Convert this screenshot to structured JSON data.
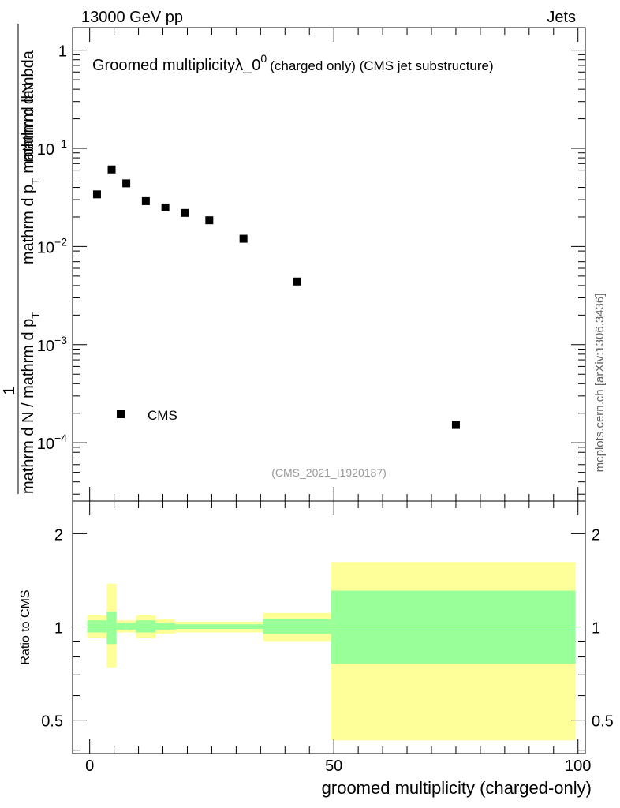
{
  "header": {
    "left": "13000 GeV pp",
    "right": "Jets"
  },
  "side_label": "mcplots.cern.ch [arXiv:1306.3436]",
  "chart_data": [
    {
      "type": "scatter",
      "title_main": "Groomed multiplicityλ_0",
      "title_sup": "0",
      "title_sub": "(charged only) (CMS jet substructure)",
      "analysis_id": "(CMS_2021_I1920187)",
      "ylabel": {
        "numerator_one": "1",
        "numerator_text": "mathrm d",
        "numerator_N": "N",
        "denominator_line1": "mathrm d N / mathrm d p",
        "denominator_sub1": "T",
        "denominator_line2": "mathrm d p",
        "denominator_sub2": "T",
        "denominator_line3": " mathrm d lambda"
      },
      "yscale": "log",
      "ylim": [
        2.55e-05,
        1.7
      ],
      "xlim": [
        -3.5,
        101.5
      ],
      "y_tick_labels": [
        {
          "value": 1,
          "base": "1",
          "exp": ""
        },
        {
          "value": 0.1,
          "base": "10",
          "exp": "−1"
        },
        {
          "value": 0.01,
          "base": "10",
          "exp": "−2"
        },
        {
          "value": 0.001,
          "base": "10",
          "exp": "−3"
        },
        {
          "value": 0.0001,
          "base": "10",
          "exp": "−4"
        }
      ],
      "series": [
        {
          "name": "CMS",
          "marker": "square",
          "color": "#000000",
          "x": [
            1.5,
            4.5,
            7.5,
            11.5,
            15.5,
            19.5,
            24.5,
            31.5,
            42.5,
            75.0
          ],
          "y": [
            0.034,
            0.061,
            0.044,
            0.029,
            0.025,
            0.022,
            0.0185,
            0.012,
            0.0044,
            0.000152
          ]
        }
      ],
      "legend": {
        "position": "bottom-left",
        "label": "CMS"
      }
    },
    {
      "type": "area",
      "ylabel": "Ratio to CMS",
      "xlabel": "groomed multiplicity (charged-only)",
      "yscale": "log",
      "ylim": [
        0.39,
        2.55
      ],
      "xlim": [
        -3.5,
        101.5
      ],
      "x_ticks": [
        0,
        50,
        100
      ],
      "x_tick_labels": [
        "0",
        "50",
        "100"
      ],
      "y_tick_labels": [
        {
          "value": 0.5,
          "label": "0.5"
        },
        {
          "value": 1,
          "label": "1"
        },
        {
          "value": 2,
          "label": "2"
        }
      ],
      "reference_line": 1.0,
      "bands": [
        {
          "x_lo": -0.5,
          "x_hi": 3.5,
          "yellow": [
            0.92,
            1.09
          ],
          "green": [
            0.96,
            1.05
          ]
        },
        {
          "x_lo": 3.5,
          "x_hi": 5.5,
          "yellow": [
            0.74,
            1.38
          ],
          "green": [
            0.88,
            1.12
          ]
        },
        {
          "x_lo": 5.5,
          "x_hi": 9.5,
          "yellow": [
            0.96,
            1.05
          ],
          "green": [
            0.98,
            1.03
          ]
        },
        {
          "x_lo": 9.5,
          "x_hi": 13.5,
          "yellow": [
            0.92,
            1.09
          ],
          "green": [
            0.96,
            1.05
          ]
        },
        {
          "x_lo": 13.5,
          "x_hi": 17.5,
          "yellow": [
            0.95,
            1.06
          ],
          "green": [
            0.98,
            1.03
          ]
        },
        {
          "x_lo": 17.5,
          "x_hi": 35.5,
          "yellow": [
            0.96,
            1.04
          ],
          "green": [
            0.985,
            1.02
          ]
        },
        {
          "x_lo": 35.5,
          "x_hi": 49.5,
          "yellow": [
            0.9,
            1.11
          ],
          "green": [
            0.95,
            1.06
          ]
        },
        {
          "x_lo": 49.5,
          "x_hi": 99.5,
          "yellow": [
            0.43,
            1.62
          ],
          "green": [
            0.76,
            1.31
          ]
        }
      ],
      "colors": {
        "yellow": "#ffff99",
        "green": "#99ff99"
      }
    }
  ]
}
